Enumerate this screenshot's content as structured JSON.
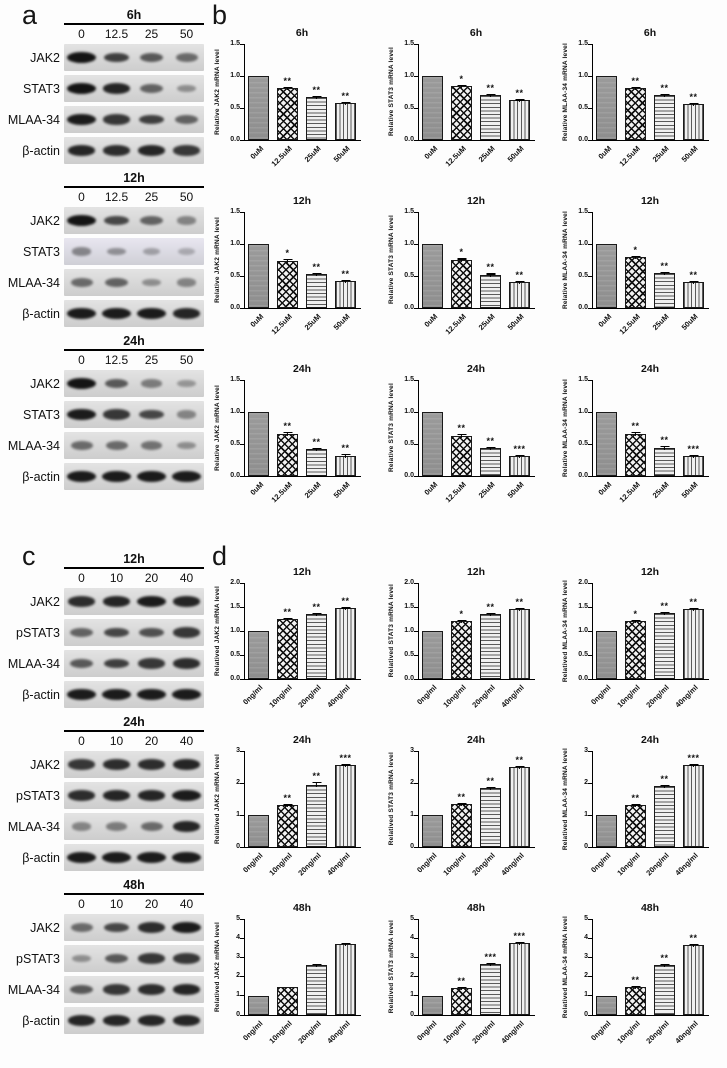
{
  "figure": {
    "panel_labels": {
      "a": "a",
      "b": "b",
      "c": "c",
      "d": "d"
    },
    "bar_patterns": [
      "solid-gray",
      "checkerboard",
      "horizontal-lines",
      "vertical-lines"
    ],
    "colors": {
      "solid_bar": "#949494",
      "pattern_background": "#f1f1f1",
      "pattern_line": "#1a1a1a",
      "axis": "#000000",
      "blot_strip": "#d9d9d9",
      "blot_band": "#141414",
      "background": "#fdfdfd"
    }
  },
  "blot_panels": [
    {
      "id": "a",
      "blocks": [
        {
          "time": "6h",
          "doses": [
            "0",
            "12.5",
            "25",
            "50"
          ],
          "rows": [
            {
              "label": "JAK2",
              "bands": [
                1.0,
                0.75,
                0.6,
                0.5
              ]
            },
            {
              "label": "STAT3",
              "bands": [
                1.0,
                0.9,
                0.55,
                0.3
              ]
            },
            {
              "label": "MLAA-34",
              "bands": [
                0.95,
                0.8,
                0.75,
                0.55
              ]
            },
            {
              "label": "β-actin",
              "bands": [
                0.9,
                0.85,
                0.9,
                0.8
              ]
            }
          ]
        },
        {
          "time": "12h",
          "doses": [
            "0",
            "12.5",
            "25",
            "50"
          ],
          "rows": [
            {
              "label": "JAK2",
              "bands": [
                1.0,
                0.7,
                0.55,
                0.35
              ]
            },
            {
              "label": "STAT3",
              "bands": [
                0.35,
                0.3,
                0.2,
                0.15
              ],
              "tint": "#e8e6f0"
            },
            {
              "label": "MLAA-34",
              "bands": [
                0.5,
                0.55,
                0.3,
                0.35
              ]
            },
            {
              "label": "β-actin",
              "bands": [
                0.95,
                0.95,
                0.95,
                0.9
              ]
            }
          ]
        },
        {
          "time": "24h",
          "doses": [
            "0",
            "12.5",
            "25",
            "50"
          ],
          "rows": [
            {
              "label": "JAK2",
              "bands": [
                1.0,
                0.6,
                0.4,
                0.25
              ]
            },
            {
              "label": "STAT3",
              "bands": [
                0.95,
                0.8,
                0.7,
                0.35
              ]
            },
            {
              "label": "MLAA-34",
              "bands": [
                0.5,
                0.5,
                0.45,
                0.3
              ]
            },
            {
              "label": "β-actin",
              "bands": [
                0.95,
                0.95,
                0.95,
                0.95
              ]
            }
          ]
        }
      ]
    },
    {
      "id": "c",
      "blocks": [
        {
          "time": "12h",
          "doses": [
            "0",
            "10",
            "20",
            "40"
          ],
          "rows": [
            {
              "label": "JAK2",
              "bands": [
                0.85,
                0.9,
                0.95,
                0.9
              ]
            },
            {
              "label": "pSTAT3",
              "bands": [
                0.55,
                0.7,
                0.65,
                0.8
              ]
            },
            {
              "label": "MLAA-34",
              "bands": [
                0.6,
                0.75,
                0.8,
                0.85
              ]
            },
            {
              "label": "β-actin",
              "bands": [
                0.95,
                0.95,
                0.95,
                0.95
              ]
            }
          ]
        },
        {
          "time": "24h",
          "doses": [
            "0",
            "10",
            "20",
            "40"
          ],
          "rows": [
            {
              "label": "JAK2",
              "bands": [
                0.8,
                0.85,
                0.85,
                0.9
              ]
            },
            {
              "label": "pSTAT3",
              "bands": [
                0.85,
                0.9,
                0.9,
                0.95
              ]
            },
            {
              "label": "MLAA-34",
              "bands": [
                0.35,
                0.4,
                0.5,
                0.9
              ]
            },
            {
              "label": "β-actin",
              "bands": [
                0.95,
                0.95,
                0.95,
                0.95
              ]
            }
          ]
        },
        {
          "time": "48h",
          "doses": [
            "0",
            "10",
            "20",
            "40"
          ],
          "rows": [
            {
              "label": "JAK2",
              "bands": [
                0.5,
                0.7,
                0.85,
                0.95
              ]
            },
            {
              "label": "pSTAT3",
              "bands": [
                0.3,
                0.6,
                0.8,
                0.8
              ]
            },
            {
              "label": "MLAA-34",
              "bands": [
                0.6,
                0.8,
                0.85,
                0.9
              ]
            },
            {
              "label": "β-actin",
              "bands": [
                0.9,
                0.9,
                0.9,
                0.9
              ]
            }
          ]
        }
      ]
    }
  ],
  "chart_data": [
    {
      "panel": "b",
      "type": "bar",
      "title": "6h",
      "ylabel": "Relative JAK2 mRNA level",
      "categories": [
        "0uM",
        "12.5uM",
        "25uM",
        "50uM"
      ],
      "values": [
        1.0,
        0.82,
        0.67,
        0.58
      ],
      "errors": [
        0,
        0.015,
        0.035,
        0.02
      ],
      "significance": [
        "",
        "**",
        "**",
        "**"
      ],
      "ylim": [
        0,
        1.5
      ],
      "yticks": [
        "0.0",
        "0.5",
        "1.0",
        "1.5"
      ]
    },
    {
      "panel": "b",
      "type": "bar",
      "title": "6h",
      "ylabel": "Relative STAT3 mRNA level",
      "categories": [
        "0uM",
        "12.5uM",
        "25uM",
        "50uM"
      ],
      "values": [
        1.0,
        0.85,
        0.7,
        0.62
      ],
      "errors": [
        0,
        0.015,
        0.015,
        0.015
      ],
      "significance": [
        "",
        "*",
        "**",
        "**"
      ],
      "ylim": [
        0,
        1.5
      ],
      "yticks": [
        "0.0",
        "0.5",
        "1.0",
        "1.5"
      ]
    },
    {
      "panel": "b",
      "type": "bar",
      "title": "6h",
      "ylabel": "Relative MLAA-34 mRNA level",
      "categories": [
        "0uM",
        "12.5uM",
        "25uM",
        "50uM"
      ],
      "values": [
        1.0,
        0.81,
        0.7,
        0.56
      ],
      "errors": [
        0,
        0.02,
        0.04,
        0.025
      ],
      "significance": [
        "",
        "**",
        "**",
        "**"
      ],
      "ylim": [
        0,
        1.5
      ],
      "yticks": [
        "0.0",
        "0.5",
        "1.0",
        "1.5"
      ]
    },
    {
      "panel": "b",
      "type": "bar",
      "title": "12h",
      "ylabel": "Relative JAK2 mRNA level",
      "categories": [
        "0uM",
        "12.5uM",
        "25uM",
        "50uM"
      ],
      "values": [
        1.0,
        0.74,
        0.53,
        0.42
      ],
      "errors": [
        0,
        0.04,
        0.04,
        0.025
      ],
      "significance": [
        "",
        "*",
        "**",
        "**"
      ],
      "ylim": [
        0,
        1.5
      ],
      "yticks": [
        "0.0",
        "0.5",
        "1.0",
        "1.5"
      ]
    },
    {
      "panel": "b",
      "type": "bar",
      "title": "12h",
      "ylabel": "Relative STAT3 mRNA level",
      "categories": [
        "0uM",
        "12.5uM",
        "25uM",
        "50uM"
      ],
      "values": [
        1.0,
        0.75,
        0.52,
        0.41
      ],
      "errors": [
        0,
        0.04,
        0.035,
        0.035
      ],
      "significance": [
        "",
        "*",
        "**",
        "**"
      ],
      "ylim": [
        0,
        1.5
      ],
      "yticks": [
        "0.0",
        "0.5",
        "1.0",
        "1.5"
      ]
    },
    {
      "panel": "b",
      "type": "bar",
      "title": "12h",
      "ylabel": "Relative MLAA-34 mRNA level",
      "categories": [
        "0uM",
        "12.5uM",
        "25uM",
        "50uM"
      ],
      "values": [
        1.0,
        0.79,
        0.54,
        0.4
      ],
      "errors": [
        0,
        0.045,
        0.045,
        0.04
      ],
      "significance": [
        "",
        "*",
        "**",
        "**"
      ],
      "ylim": [
        0,
        1.5
      ],
      "yticks": [
        "0.0",
        "0.5",
        "1.0",
        "1.5"
      ]
    },
    {
      "panel": "b",
      "type": "bar",
      "title": "24h",
      "ylabel": "Relative JAK2 mRNA level",
      "categories": [
        "0uM",
        "12.5uM",
        "25uM",
        "50uM"
      ],
      "values": [
        1.0,
        0.65,
        0.42,
        0.32
      ],
      "errors": [
        0,
        0.05,
        0.04,
        0.04
      ],
      "significance": [
        "",
        "**",
        "**",
        "**"
      ],
      "ylim": [
        0,
        1.5
      ],
      "yticks": [
        "0.0",
        "0.5",
        "1.0",
        "1.5"
      ]
    },
    {
      "panel": "b",
      "type": "bar",
      "title": "24h",
      "ylabel": "Relative STAT3 mRNA level",
      "categories": [
        "0uM",
        "12.5uM",
        "25uM",
        "50uM"
      ],
      "values": [
        1.0,
        0.63,
        0.43,
        0.31
      ],
      "errors": [
        0,
        0.04,
        0.04,
        0.02
      ],
      "significance": [
        "",
        "**",
        "**",
        "***"
      ],
      "ylim": [
        0,
        1.5
      ],
      "yticks": [
        "0.0",
        "0.5",
        "1.0",
        "1.5"
      ]
    },
    {
      "panel": "b",
      "type": "bar",
      "title": "24h",
      "ylabel": "Relative MLAA-34 mRNA level",
      "categories": [
        "0uM",
        "12.5uM",
        "25uM",
        "50uM"
      ],
      "values": [
        1.0,
        0.66,
        0.44,
        0.32
      ],
      "errors": [
        0,
        0.04,
        0.04,
        0.015
      ],
      "significance": [
        "",
        "**",
        "**",
        "***"
      ],
      "ylim": [
        0,
        1.5
      ],
      "yticks": [
        "0.0",
        "0.5",
        "1.0",
        "1.5"
      ]
    },
    {
      "panel": "d",
      "type": "bar",
      "title": "12h",
      "ylabel": "Relatived JAK2 mRNA level",
      "categories": [
        "0ng/ml",
        "10ng/ml",
        "20ng/ml",
        "40ng/ml"
      ],
      "values": [
        1.0,
        1.25,
        1.36,
        1.47
      ],
      "errors": [
        0,
        0.02,
        0.03,
        0.02
      ],
      "significance": [
        "",
        "**",
        "**",
        "**"
      ],
      "ylim": [
        0,
        2
      ],
      "yticks": [
        "0.0",
        "0.5",
        "1.0",
        "1.5",
        "2.0"
      ]
    },
    {
      "panel": "d",
      "type": "bar",
      "title": "12h",
      "ylabel": "Relatived STAT3 mRNA level",
      "categories": [
        "0ng/ml",
        "10ng/ml",
        "20ng/ml",
        "40ng/ml"
      ],
      "values": [
        1.0,
        1.21,
        1.35,
        1.46
      ],
      "errors": [
        0,
        0.03,
        0.02,
        0.04
      ],
      "significance": [
        "",
        "*",
        "**",
        "**"
      ],
      "ylim": [
        0,
        2
      ],
      "yticks": [
        "0.0",
        "0.5",
        "1.0",
        "1.5",
        "2.0"
      ]
    },
    {
      "panel": "d",
      "type": "bar",
      "title": "12h",
      "ylabel": "Relatived MLAA-34 mRNA level",
      "categories": [
        "0ng/ml",
        "10ng/ml",
        "20ng/ml",
        "40ng/ml"
      ],
      "values": [
        1.0,
        1.21,
        1.37,
        1.46
      ],
      "errors": [
        0,
        0.03,
        0.02,
        0.03
      ],
      "significance": [
        "",
        "*",
        "**",
        "**"
      ],
      "ylim": [
        0,
        2
      ],
      "yticks": [
        "0.0",
        "0.5",
        "1.0",
        "1.5",
        "2.0"
      ]
    },
    {
      "panel": "d",
      "type": "bar",
      "title": "24h",
      "ylabel": "Relatived JAK2 mRNA level",
      "categories": [
        "0ng/ml",
        "10ng/ml",
        "20ng/ml",
        "40ng/ml"
      ],
      "values": [
        1.0,
        1.3,
        1.95,
        2.55
      ],
      "errors": [
        0,
        0.04,
        0.12,
        0.05
      ],
      "significance": [
        "",
        "**",
        "**",
        "***"
      ],
      "ylim": [
        0,
        3
      ],
      "yticks": [
        "0",
        "1",
        "2",
        "3"
      ]
    },
    {
      "panel": "d",
      "type": "bar",
      "title": "24h",
      "ylabel": "Relatived STAT3 mRNA level",
      "categories": [
        "0ng/ml",
        "10ng/ml",
        "20ng/ml",
        "40ng/ml"
      ],
      "values": [
        1.0,
        1.33,
        1.85,
        2.5
      ],
      "errors": [
        0,
        0.04,
        0.05,
        0.07
      ],
      "significance": [
        "",
        "**",
        "**",
        "**"
      ],
      "ylim": [
        0,
        3
      ],
      "yticks": [
        "0",
        "1",
        "2",
        "3"
      ]
    },
    {
      "panel": "d",
      "type": "bar",
      "title": "24h",
      "ylabel": "Relatived MLAA-34 mRNA level",
      "categories": [
        "0ng/ml",
        "10ng/ml",
        "20ng/ml",
        "40ng/ml"
      ],
      "values": [
        1.0,
        1.3,
        1.9,
        2.55
      ],
      "errors": [
        0,
        0.04,
        0.08,
        0.06
      ],
      "significance": [
        "",
        "**",
        "**",
        "***"
      ],
      "ylim": [
        0,
        3
      ],
      "yticks": [
        "0",
        "1",
        "2",
        "3"
      ]
    },
    {
      "panel": "d",
      "type": "bar",
      "title": "48h",
      "ylabel": "Relatived JAK2 mRNA level",
      "categories": [
        "0ng/ml",
        "10ng/ml",
        "20ng/ml",
        "40ng/ml"
      ],
      "values": [
        1.0,
        1.48,
        2.6,
        3.7
      ],
      "errors": [
        0,
        0,
        0.06,
        0.1
      ],
      "significance": [
        "",
        "",
        "",
        ""
      ],
      "ylim": [
        0,
        5
      ],
      "yticks": [
        "0",
        "1",
        "2",
        "3",
        "4",
        "5"
      ]
    },
    {
      "panel": "d",
      "type": "bar",
      "title": "48h",
      "ylabel": "Relatived STAT3 mRNA level",
      "categories": [
        "0ng/ml",
        "10ng/ml",
        "20ng/ml",
        "40ng/ml"
      ],
      "values": [
        1.0,
        1.4,
        2.65,
        3.75
      ],
      "errors": [
        0,
        0.05,
        0.06,
        0.08
      ],
      "significance": [
        "",
        "**",
        "***",
        "***"
      ],
      "ylim": [
        0,
        5
      ],
      "yticks": [
        "0",
        "1",
        "2",
        "3",
        "4",
        "5"
      ]
    },
    {
      "panel": "d",
      "type": "bar",
      "title": "48h",
      "ylabel": "Relatived MLAA-34 mRNA level",
      "categories": [
        "0ng/ml",
        "10ng/ml",
        "20ng/ml",
        "40ng/ml"
      ],
      "values": [
        1.0,
        1.45,
        2.6,
        3.65
      ],
      "errors": [
        0,
        0.06,
        0.1,
        0.12
      ],
      "significance": [
        "",
        "**",
        "**",
        "**"
      ],
      "ylim": [
        0,
        5
      ],
      "yticks": [
        "0",
        "1",
        "2",
        "3",
        "4",
        "5"
      ]
    }
  ]
}
